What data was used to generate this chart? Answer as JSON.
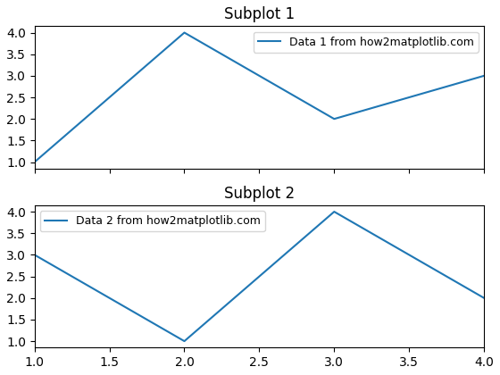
{
  "subplot1": {
    "x": [
      1,
      2,
      3,
      4
    ],
    "y": [
      1,
      4,
      2,
      3
    ],
    "label": "Data 1 from how2matplotlib.com",
    "title": "Subplot 1",
    "color": "#1f77b4",
    "legend_loc": "upper right"
  },
  "subplot2": {
    "x": [
      1,
      1.5,
      2,
      3,
      3.5,
      4
    ],
    "y": [
      3,
      2,
      1,
      4,
      3,
      2
    ],
    "label": "Data 2 from how2matplotlib.com",
    "title": "Subplot 2",
    "color": "#1f77b4",
    "legend_loc": "upper left"
  },
  "xlim": [
    1.0,
    4.0
  ],
  "ylim": [
    0.9,
    4.05
  ],
  "xticks": [
    1.0,
    1.5,
    2.0,
    2.5,
    3.0,
    3.5,
    4.0
  ],
  "yticks": [
    1.0,
    1.5,
    2.0,
    2.5,
    3.0,
    3.5,
    4.0
  ],
  "figsize": [
    5.6,
    4.2
  ],
  "dpi": 100,
  "background_color": "#ffffff"
}
